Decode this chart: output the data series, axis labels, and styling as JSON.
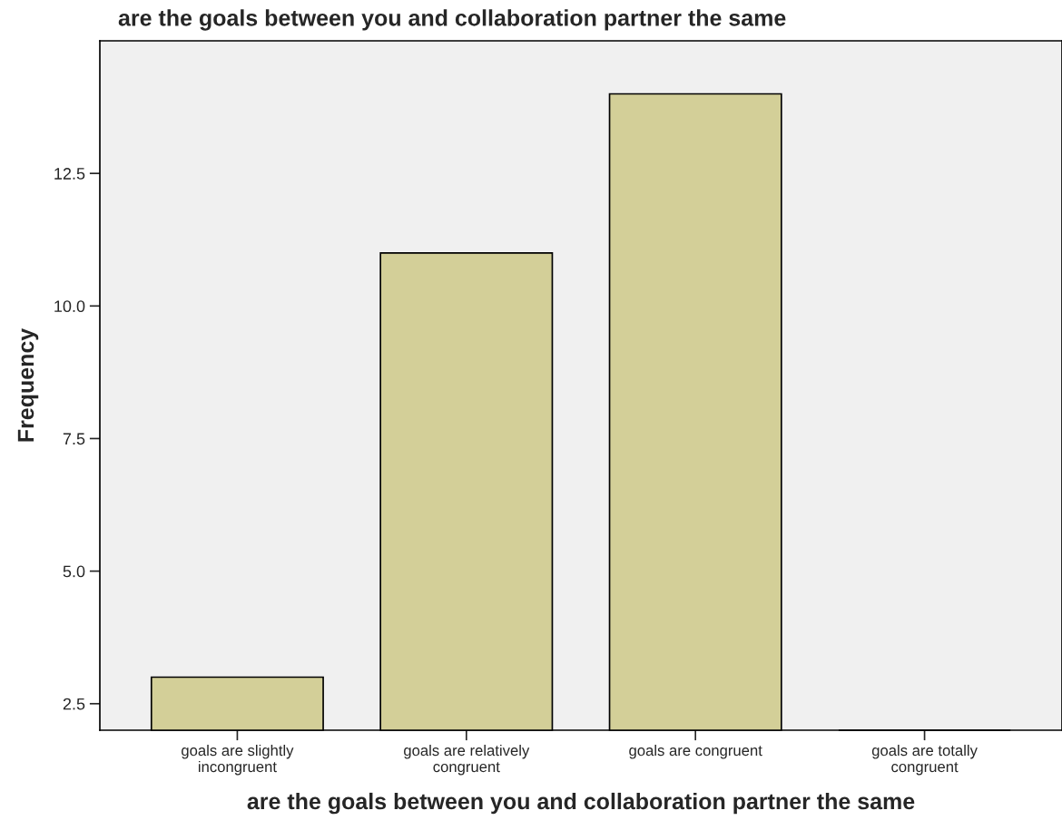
{
  "chart_data": {
    "type": "bar",
    "title": "are the goals between you and collaboration partner the same",
    "xlabel": "are the goals between you and collaboration partner the same",
    "ylabel": "Frequency",
    "categories": [
      "goals are slightly\nincongruent",
      "goals are relatively\ncongruent",
      "goals are congruent",
      "goals are totally\ncongruent"
    ],
    "values": [
      3,
      11,
      14,
      2
    ],
    "color": "#d3cf98",
    "ylim": [
      2,
      15
    ],
    "yticks": [
      2.5,
      {
        "value": 5,
        "label": "5.0"
      },
      7.5,
      {
        "value": 10,
        "label": "10.0"
      },
      12.5
    ],
    "grid": false,
    "legend": false
  }
}
